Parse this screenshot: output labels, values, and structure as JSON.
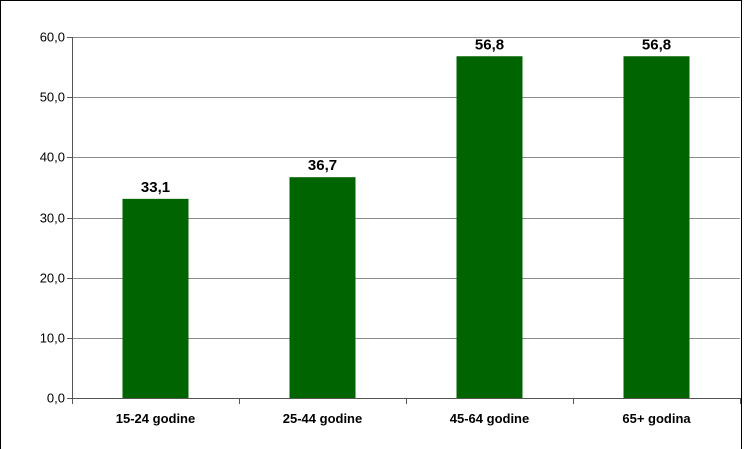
{
  "chart_data": {
    "type": "bar",
    "title": "",
    "xlabel": "",
    "ylabel": "",
    "categories": [
      "15-24 godine",
      "25-44 godine",
      "45-64 godine",
      "65+ godina"
    ],
    "values": [
      33.1,
      36.7,
      56.8,
      56.8
    ],
    "value_labels": [
      "33,1",
      "36,7",
      "56,8",
      "56,8"
    ],
    "ylim": [
      0,
      60
    ],
    "yticks": [
      0,
      10,
      20,
      30,
      40,
      50,
      60
    ],
    "ytick_labels": [
      "0,0",
      "10,0",
      "20,0",
      "30,0",
      "40,0",
      "50,0",
      "60,0"
    ],
    "grid": true,
    "legend": "none",
    "bar_color": "#006400",
    "grid_color": "#8c8c8c"
  }
}
